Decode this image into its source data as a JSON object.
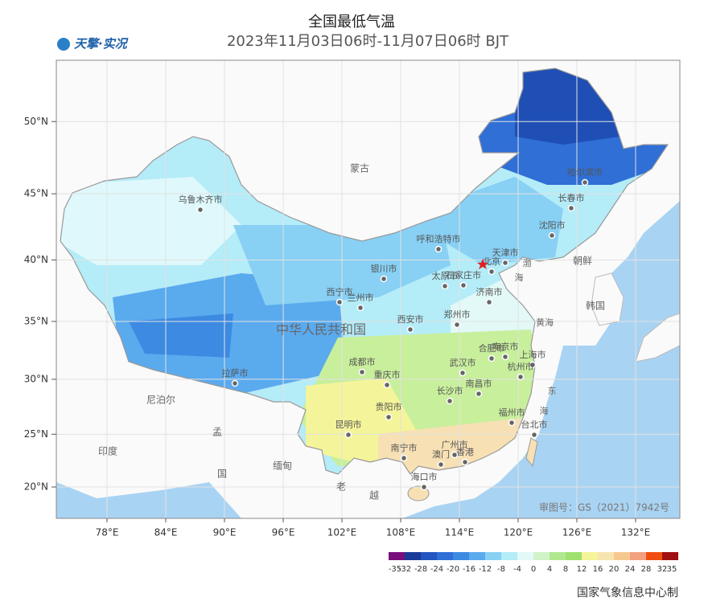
{
  "header": {
    "title": "全国最低气温",
    "subtitle": "2023年11月03日06时-11月07日06时 BJT",
    "logo": "天擎·实况"
  },
  "lon_ticks": [
    {
      "value": 78,
      "label": "78°E"
    },
    {
      "value": 84,
      "label": "84°E"
    },
    {
      "value": 90,
      "label": "90°E"
    },
    {
      "value": 96,
      "label": "96°E"
    },
    {
      "value": 102,
      "label": "102°E"
    },
    {
      "value": 108,
      "label": "108°E"
    },
    {
      "value": 114,
      "label": "114°E"
    },
    {
      "value": 120,
      "label": "120°E"
    },
    {
      "value": 126,
      "label": "126°E"
    },
    {
      "value": 132,
      "label": "132°E"
    }
  ],
  "lat_ticks": [
    {
      "value": 50,
      "label": "50°N"
    },
    {
      "value": 45,
      "label": "45°N"
    },
    {
      "value": 40,
      "label": "40°N"
    },
    {
      "value": 35,
      "label": "35°N"
    },
    {
      "value": 30,
      "label": "30°N"
    },
    {
      "value": 25,
      "label": "25°N"
    },
    {
      "value": 20,
      "label": "20°N"
    }
  ],
  "cities": [
    "乌鲁木齐市",
    "哈尔滨市",
    "长春市",
    "沈阳市",
    "呼和浩特市",
    "北京",
    "天津市",
    "银川市",
    "太原市",
    "石家庄市",
    "济南市",
    "西宁市",
    "兰州市",
    "西安市",
    "郑州市",
    "合肥市",
    "南京市",
    "上海市",
    "武汉市",
    "成都市",
    "重庆市",
    "杭州市",
    "拉萨市",
    "长沙市",
    "南昌市",
    "贵阳市",
    "福州市",
    "昆明市",
    "台北市",
    "广州市",
    "南宁市",
    "澳门",
    "香港",
    "海口市"
  ],
  "places": [
    "蒙古",
    "朝鲜",
    "韩国",
    "中华人民共和国",
    "尼泊尔",
    "印度",
    "孟",
    "国",
    "缅甸",
    "老",
    "越",
    "黄海",
    "东",
    "海",
    "渤",
    "海"
  ],
  "legend": {
    "bounds": [
      -35,
      -32,
      -28,
      -24,
      -20,
      -16,
      -12,
      -8,
      -4,
      0,
      4,
      8,
      12,
      16,
      20,
      24,
      28,
      32,
      35
    ],
    "colors": [
      "#7a0e7a",
      "#1a3a9a",
      "#2455c0",
      "#2f6fd6",
      "#3d8ae2",
      "#5aaaee",
      "#88d0f4",
      "#b4ecf8",
      "#e2f9f8",
      "#d0f3c8",
      "#b0e890",
      "#9fe070",
      "#f4f49a",
      "#f7e5b0",
      "#f6c890",
      "#f2a07e",
      "#f04e10",
      "#a01010"
    ]
  },
  "footer": {
    "review_no": "审图号：GS（2021）7942号",
    "credit": "国家气象信息中心制"
  }
}
